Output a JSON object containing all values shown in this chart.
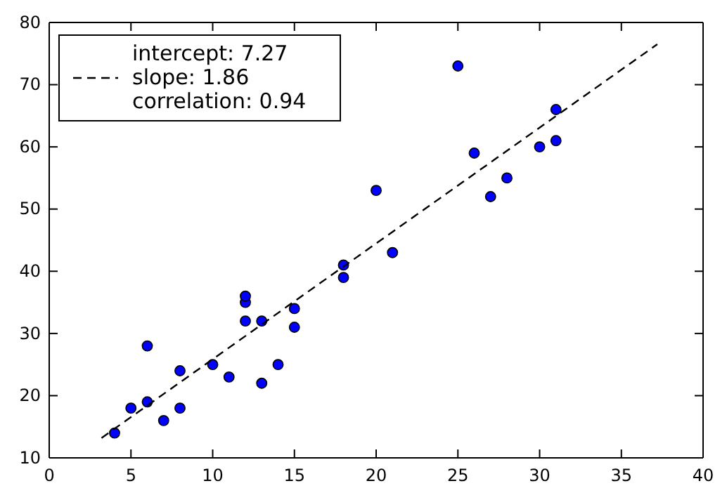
{
  "chart_data": {
    "type": "scatter",
    "xlim": [
      0,
      40
    ],
    "ylim": [
      10,
      80
    ],
    "xticks": [
      0,
      5,
      10,
      15,
      20,
      25,
      30,
      35,
      40
    ],
    "yticks": [
      10,
      20,
      30,
      40,
      50,
      60,
      70,
      80
    ],
    "grid": false,
    "legend": "top left",
    "series": [
      {
        "color": "#0000ff",
        "marker": "circle",
        "x": [
          4,
          5,
          6,
          6,
          7,
          8,
          8,
          10,
          11,
          12,
          12,
          12,
          13,
          13,
          14,
          15,
          15,
          18,
          18,
          20,
          21,
          25,
          26,
          27,
          28,
          30,
          31,
          31
        ],
        "values": [
          14,
          18,
          19,
          28,
          16,
          18,
          24,
          25,
          23,
          32,
          35,
          36,
          22,
          32,
          25,
          31,
          34,
          39,
          41,
          53,
          43,
          73,
          59,
          52,
          55,
          60,
          61,
          66
        ]
      },
      {
        "type": "line",
        "name": "intercept: 7.27\nslope: 1.86\ncorrelation: 0.94",
        "color": "#000000",
        "marker": "none",
        "line_style": "dashed",
        "x": [
          3.2,
          37.2
        ],
        "values": [
          13.2,
          76.5
        ]
      }
    ]
  }
}
